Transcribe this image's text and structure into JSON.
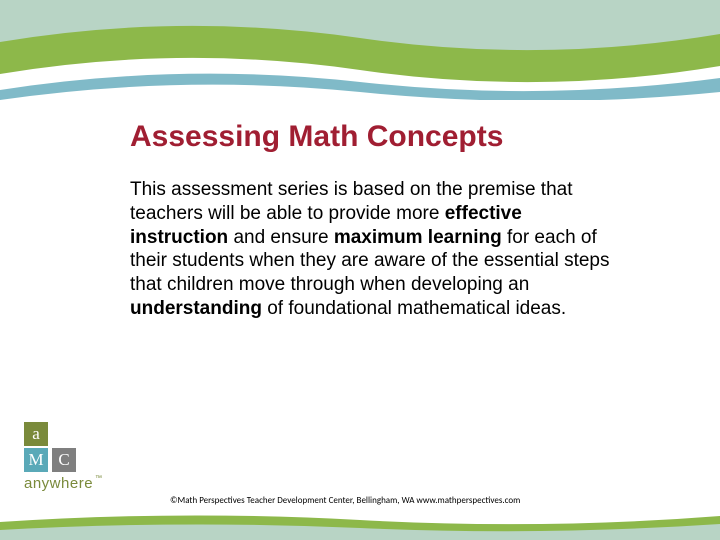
{
  "header": {
    "wave_top_color": "#b8d4c5",
    "wave_mid_color": "#8db84a",
    "wave_bottom_color": "#ffffff",
    "underline_color": "#4a9db0"
  },
  "title": {
    "text": "Assessing Math Concepts",
    "color": "#a01e32",
    "fontsize": 30
  },
  "body": {
    "segments": [
      {
        "text": "This assessment series is based on the premise that teachers will be able to provide more ",
        "bold": false
      },
      {
        "text": "effective instruction",
        "bold": true
      },
      {
        "text": " and ensure ",
        "bold": false
      },
      {
        "text": "maximum learning",
        "bold": true
      },
      {
        "text": " for each of their students when they are aware of the essential steps that children move through when developing an ",
        "bold": false
      },
      {
        "text": "understanding",
        "bold": true
      },
      {
        "text": " of foundational mathematical ideas.",
        "bold": false
      }
    ],
    "fontsize": 19,
    "color": "#000000"
  },
  "logo": {
    "tiles": [
      {
        "letter": "a",
        "bg": "#7a8a3b"
      },
      {
        "letter": "M",
        "bg": "#5aa9b8"
      },
      {
        "letter": "C",
        "bg": "#7f7f7f"
      }
    ],
    "word": "anywhere",
    "word_color": "#7a8a3b"
  },
  "footer": {
    "text": "©Math Perspectives Teacher Development Center, Bellingham, WA www.mathperspectives.com",
    "wave_top_color": "#8db84a",
    "wave_bottom_color": "#b8d4c5"
  }
}
